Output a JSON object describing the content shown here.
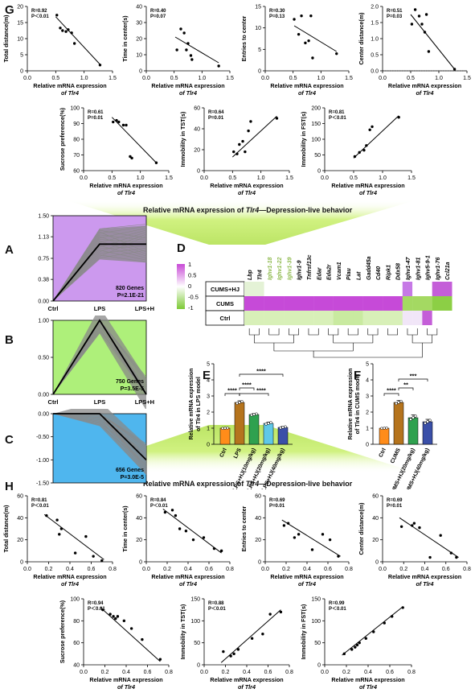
{
  "panels": {
    "g": "G",
    "a": "A",
    "b": "B",
    "c": "C",
    "d": "D",
    "e": "E",
    "f": "F",
    "h": "H"
  },
  "banner_top": {
    "pre": "Relative mRNA expression of ",
    "gene": "Tlr4",
    "post": "—Depression-live behavior"
  },
  "banner_bottom": {
    "pre": "Relative mRNA expression of ",
    "gene": "Tlr4",
    "post": "—Depression-live behavior"
  },
  "colors": {
    "purple": "#cc99ee",
    "green": "#aef07a",
    "blue": "#4fb6ee",
    "ctrl": "#ff8c1a",
    "lps": "#b5741d",
    "hj10": "#2fa14f",
    "hj20": "#5fc8e8",
    "hj40": "#3a4fa8"
  },
  "chart_data": [
    {
      "id": "G1",
      "type": "scatter",
      "ylabel": "Total distance(m)",
      "xlabel": "Relative mRNA expression",
      "xlabel2": "of Tlr4",
      "stat1": "R=0.92",
      "stat2": "P＜0.01",
      "xlim": [
        0,
        1.5
      ],
      "ylim": [
        0,
        20
      ],
      "xticks": [
        "0.0",
        "0.5",
        "1.0",
        "1.5"
      ],
      "yticks": [
        "0",
        "5",
        "10",
        "15",
        "20"
      ],
      "x": [
        0.52,
        0.58,
        0.62,
        0.68,
        0.72,
        0.78,
        0.83,
        1.28
      ],
      "y": [
        17.3,
        13.3,
        12.5,
        12.2,
        12.8,
        11.8,
        8.5,
        1.8
      ],
      "fit": [
        [
          0.5,
          16.8
        ],
        [
          1.28,
          2.0
        ]
      ],
      "dashed": false
    },
    {
      "id": "G2",
      "type": "scatter",
      "ylabel": "Time in center(s)",
      "xlabel": "Relative mRNA expression",
      "xlabel2": "of Tlr4",
      "stat1": "R=0.40",
      "stat2": "P=0.07",
      "xlim": [
        0,
        1.5
      ],
      "ylim": [
        0,
        40
      ],
      "xticks": [
        "0.0",
        "0.5",
        "1.0",
        "1.5"
      ],
      "yticks": [
        "0",
        "10",
        "20",
        "30",
        "40"
      ],
      "x": [
        0.55,
        0.62,
        0.68,
        0.72,
        0.75,
        0.8,
        0.82,
        1.3
      ],
      "y": [
        13,
        26,
        23.5,
        13,
        17,
        9.5,
        7,
        3
      ],
      "fit": [
        [
          0.52,
          21
        ],
        [
          1.3,
          5
        ]
      ],
      "dashed": false
    },
    {
      "id": "G3",
      "type": "scatter",
      "ylabel": "Entries to center",
      "xlabel": "Relative mRNA expression",
      "xlabel2": "of Tlr4",
      "stat1": "R=0.30",
      "stat2": "P=0.13",
      "xlim": [
        0,
        1.5
      ],
      "ylim": [
        0,
        15
      ],
      "xticks": [
        "0.0",
        "0.5",
        "1.0",
        "1.5"
      ],
      "yticks": [
        "0",
        "5",
        "10",
        "15"
      ],
      "x": [
        0.52,
        0.6,
        0.65,
        0.72,
        0.78,
        0.82,
        0.85,
        1.28
      ],
      "y": [
        12,
        8.5,
        12.8,
        6.5,
        7,
        12.8,
        3,
        4
      ],
      "fit": [
        [
          0.52,
          10.5
        ],
        [
          1.28,
          4.5
        ]
      ],
      "dashed": false
    },
    {
      "id": "G4",
      "type": "scatter",
      "ylabel": "Center distance(m)",
      "xlabel": "Relative mRNA expression",
      "xlabel2": "of Tlr4",
      "stat1": "R=0.51",
      "stat2": "P=0.03",
      "xlim": [
        0,
        1.5
      ],
      "ylim": [
        0,
        2.0
      ],
      "xticks": [
        "0.0",
        "0.5",
        "1.0",
        "1.5"
      ],
      "yticks": [
        "0.0",
        "0.5",
        "1.0",
        "1.5",
        "2.0"
      ],
      "x": [
        0.52,
        0.58,
        0.65,
        0.7,
        0.75,
        0.78,
        0.82,
        1.28
      ],
      "y": [
        1.45,
        1.9,
        1.7,
        1.45,
        1.2,
        1.75,
        0.6,
        0.05
      ],
      "fit": [
        [
          0.5,
          1.75
        ],
        [
          1.28,
          0.05
        ]
      ],
      "dashed": true
    },
    {
      "id": "G5",
      "type": "scatter",
      "ylabel": "Sucrose preference(%)",
      "xlabel": "Relative mRNA expression",
      "xlabel2": "of Tlr4",
      "stat1": "R=0.61",
      "stat2": "P=0.01",
      "xlim": [
        0,
        1.5
      ],
      "ylim": [
        60,
        100
      ],
      "xticks": [
        "0.0",
        "0.5",
        "1.0",
        "1.5"
      ],
      "yticks": [
        "60",
        "70",
        "80",
        "90",
        "100"
      ],
      "x": [
        0.52,
        0.58,
        0.62,
        0.7,
        0.75,
        0.82,
        0.85,
        1.28
      ],
      "y": [
        91,
        92,
        91,
        89,
        89,
        69,
        68,
        65
      ],
      "fit": [
        [
          0.5,
          94
        ],
        [
          1.28,
          65
        ]
      ],
      "dashed": false
    },
    {
      "id": "G6",
      "type": "scatter",
      "ylabel": "Immobility in TST(s)",
      "xlabel": "Relative mRNA expression",
      "xlabel2": "of Tlr4",
      "stat1": "R=0.64",
      "stat2": "P=0.01",
      "xlim": [
        0,
        1.5
      ],
      "ylim": [
        0,
        60
      ],
      "xticks": [
        "0.0",
        "0.5",
        "1.0",
        "1.5"
      ],
      "yticks": [
        "0",
        "20",
        "40",
        "60"
      ],
      "x": [
        0.52,
        0.58,
        0.62,
        0.68,
        0.72,
        0.78,
        0.82,
        1.28
      ],
      "y": [
        18,
        16,
        25,
        28,
        18,
        38,
        47,
        50
      ],
      "fit": [
        [
          0.5,
          13
        ],
        [
          1.28,
          52
        ]
      ],
      "dashed": false
    },
    {
      "id": "G7",
      "type": "scatter",
      "ylabel": "Immobility in FST(s)",
      "xlabel": "Relative mRNA expression",
      "xlabel2": "of Tlr4",
      "stat1": "R=0.81",
      "stat2": "P＜0.01",
      "xlim": [
        0,
        1.5
      ],
      "ylim": [
        0,
        200
      ],
      "xticks": [
        "0.0",
        "0.5",
        "1.0",
        "1.5"
      ],
      "yticks": [
        "0",
        "50",
        "100",
        "150",
        "200"
      ],
      "x": [
        0.52,
        0.6,
        0.68,
        0.72,
        0.78,
        0.82,
        1.28
      ],
      "y": [
        45,
        58,
        65,
        80,
        130,
        140,
        170
      ],
      "fit": [
        [
          0.5,
          40
        ],
        [
          1.28,
          175
        ]
      ],
      "dashed": false
    },
    {
      "id": "A",
      "type": "line",
      "panel_color": "#cc99ee",
      "categories": [
        "Ctrl",
        "LPS",
        "LPS+HJ"
      ],
      "ylim": [
        0,
        1.5
      ],
      "yticks": [
        "0.00",
        "0.38",
        "0.75",
        "1.13",
        "1.50"
      ],
      "mean": [
        0,
        1.0,
        1.0
      ],
      "count": "820 Genes",
      "p": "P=2.1E-21"
    },
    {
      "id": "B",
      "type": "line",
      "panel_color": "#aef07a",
      "categories": [
        "Ctrl",
        "LPS",
        "LPS+HJ"
      ],
      "ylim": [
        0,
        1.0
      ],
      "yticks": [
        "0.00",
        "0.50",
        "1.00"
      ],
      "mean": [
        0,
        1.0,
        0
      ],
      "count": "750 Genes",
      "p": "P=3.5E-5"
    },
    {
      "id": "C",
      "type": "line",
      "panel_color": "#4fb6ee",
      "categories": [
        "Ctrl",
        "LPS",
        "LPS+HJ"
      ],
      "ylim": [
        -1.5,
        0.0
      ],
      "yticks": [
        "0.00",
        "-0.50",
        "-1.00",
        "-1.50"
      ],
      "mean": [
        0,
        0,
        -1.0
      ],
      "count": "656 Genes",
      "p": "P=3.0E-5"
    },
    {
      "id": "D",
      "type": "heatmap",
      "rows": [
        "CUMS+HJ",
        "CUMS",
        "Ctrl"
      ],
      "scale": [
        "1",
        "0.5",
        "0",
        "-0.5",
        "-1"
      ],
      "columns": [
        "Lbp",
        "Tlr4",
        "Ighv1-18",
        "Ighv1-22",
        "Ighv1-39",
        "Ighv1-9",
        "Tnfrsf13c",
        "Edar",
        "Eda2r",
        "Vcam1",
        "Plau",
        "Lat",
        "Gadd45a",
        "Cd40",
        "Ripk1",
        "Ddx58",
        "Ighv1-47",
        "Ighv1-81",
        "Ighv5-9-1",
        "Ighv1-76",
        "Ccl21a"
      ]
    },
    {
      "id": "E",
      "type": "bar",
      "ylabel": "Relative mRNA expression",
      "ylabel2": "of Tlr4 in LPS model",
      "categories": [
        "Ctrl",
        "LPS",
        "LPS+HJ(10mg/kg)",
        "LPS+HJ(20mg/kg)",
        "LPS+HJ(40mg/kg)"
      ],
      "values": [
        1.0,
        2.6,
        1.85,
        1.3,
        1.05
      ],
      "errors": [
        0.02,
        0.1,
        0.06,
        0.08,
        0.06
      ],
      "ylim": [
        0,
        5
      ],
      "yticks": [
        "0",
        "1",
        "2",
        "3",
        "4",
        "5"
      ],
      "sig": [
        "****",
        "****",
        "****",
        "****"
      ]
    },
    {
      "id": "F",
      "type": "bar",
      "ylabel": "Relative mRNA expression",
      "ylabel2": "of Tlr4 in CUMS model",
      "categories": [
        "Ctrl",
        "CUMS",
        "CUMS+HJ(20mg/kg)",
        "CUMS+HJ(40mg/kg)"
      ],
      "values": [
        1.0,
        2.6,
        1.65,
        1.4
      ],
      "errors": [
        0.02,
        0.12,
        0.18,
        0.15
      ],
      "ylim": [
        0,
        5
      ],
      "yticks": [
        "0",
        "1",
        "2",
        "3",
        "4",
        "5"
      ],
      "sig": [
        "****",
        "**",
        "***"
      ]
    },
    {
      "id": "H1",
      "type": "scatter",
      "ylabel": "Total distance(m)",
      "xlabel": "Relative mRNA expression",
      "xlabel2": "of Tlr4",
      "stat1": "R=0.81",
      "stat2": "P＜0.01",
      "xlim": [
        0,
        0.8
      ],
      "ylim": [
        0,
        60
      ],
      "xticks": [
        "0.0",
        "0.2",
        "0.4",
        "0.6",
        "0.8"
      ],
      "yticks": [
        "0",
        "20",
        "40",
        "60"
      ],
      "x": [
        0.18,
        0.28,
        0.3,
        0.32,
        0.45,
        0.55,
        0.62,
        0.7
      ],
      "y": [
        42,
        38,
        25,
        30,
        8,
        23,
        5,
        1
      ],
      "fit": [
        [
          0.16,
          43
        ],
        [
          0.72,
          2
        ]
      ],
      "dashed": false
    },
    {
      "id": "H2",
      "type": "scatter",
      "ylabel": "Time in center(s)",
      "xlabel": "Relative mRNA expression",
      "xlabel2": "of Tlr4",
      "stat1": "R=0.84",
      "stat2": "P＜0.01",
      "xlim": [
        0,
        0.8
      ],
      "ylim": [
        0,
        60
      ],
      "xticks": [
        "0.0",
        "0.2",
        "0.4",
        "0.6",
        "0.8"
      ],
      "yticks": [
        "0",
        "20",
        "40",
        "60"
      ],
      "x": [
        0.18,
        0.25,
        0.28,
        0.32,
        0.38,
        0.45,
        0.55,
        0.65,
        0.72
      ],
      "y": [
        45,
        47,
        42,
        30,
        28,
        20,
        22,
        12,
        10
      ],
      "fit": [
        [
          0.16,
          48
        ],
        [
          0.72,
          8
        ]
      ],
      "dashed": false
    },
    {
      "id": "H3",
      "type": "scatter",
      "ylabel": "Entries to center",
      "xlabel": "Relative mRNA expression",
      "xlabel2": "of Tlr4",
      "stat1": "R=0.69",
      "stat2": "P=0.01",
      "xlim": [
        0,
        0.8
      ],
      "ylim": [
        0,
        60
      ],
      "xticks": [
        "0.0",
        "0.2",
        "0.4",
        "0.6",
        "0.8"
      ],
      "yticks": [
        "0",
        "20",
        "40",
        "60"
      ],
      "x": [
        0.18,
        0.22,
        0.28,
        0.32,
        0.45,
        0.55,
        0.62,
        0.7
      ],
      "y": [
        33,
        35,
        22,
        25,
        11,
        25,
        20,
        5
      ],
      "fit": [
        [
          0.16,
          38
        ],
        [
          0.72,
          5
        ]
      ],
      "dashed": false
    },
    {
      "id": "H4",
      "type": "scatter",
      "ylabel": "Center distance(m)",
      "xlabel": "Relative mRNA expression",
      "xlabel2": "of Tlr4",
      "stat1": "R=0.69",
      "stat2": "P=0.01",
      "xlim": [
        0,
        0.8
      ],
      "ylim": [
        0,
        60
      ],
      "xticks": [
        "0.0",
        "0.2",
        "0.4",
        "0.6",
        "0.8"
      ],
      "yticks": [
        "0",
        "20",
        "40",
        "60"
      ],
      "x": [
        0.18,
        0.28,
        0.3,
        0.35,
        0.45,
        0.55,
        0.65,
        0.7
      ],
      "y": [
        32,
        33,
        35,
        31,
        4,
        24,
        8,
        4
      ],
      "fit": [
        [
          0.16,
          40
        ],
        [
          0.72,
          4
        ]
      ],
      "dashed": false
    },
    {
      "id": "H5",
      "type": "scatter",
      "ylabel": "Sucrose preference(%)",
      "xlabel": "Relative mRNA expression",
      "xlabel2": "of Tlr4",
      "stat1": "R=0.94",
      "stat2": "P＜0.01",
      "xlim": [
        0,
        0.8
      ],
      "ylim": [
        40,
        100
      ],
      "xticks": [
        "0.0",
        "0.2",
        "0.4",
        "0.6",
        "0.8"
      ],
      "yticks": [
        "40",
        "60",
        "80",
        "100"
      ],
      "x": [
        0.18,
        0.25,
        0.28,
        0.3,
        0.32,
        0.38,
        0.45,
        0.55,
        0.72
      ],
      "y": [
        90,
        86,
        84,
        82,
        84,
        80,
        73,
        63,
        45
      ],
      "fit": [
        [
          0.16,
          92
        ],
        [
          0.72,
          43
        ]
      ],
      "dashed": false
    },
    {
      "id": "H6",
      "type": "scatter",
      "ylabel": "Immobility in TST(s)",
      "xlabel": "Relative mRNA expression",
      "xlabel2": "of Tlr4",
      "stat1": "R=0.88",
      "stat2": "P＜0.01",
      "xlim": [
        0,
        0.8
      ],
      "ylim": [
        0,
        150
      ],
      "xticks": [
        "0.0",
        "0.2",
        "0.4",
        "0.6",
        "0.8"
      ],
      "yticks": [
        "0",
        "50",
        "100",
        "150"
      ],
      "x": [
        0.18,
        0.25,
        0.28,
        0.32,
        0.45,
        0.55,
        0.62,
        0.72
      ],
      "y": [
        30,
        20,
        25,
        35,
        60,
        70,
        115,
        120
      ],
      "fit": [
        [
          0.16,
          5
        ],
        [
          0.72,
          125
        ]
      ],
      "dashed": false
    },
    {
      "id": "H7",
      "type": "scatter",
      "ylabel": "Immobility in FST(s)",
      "xlabel": "Relative mRNA expression",
      "xlabel2": "of Tlr4",
      "stat1": "R=0.99",
      "stat2": "P＜0.01",
      "xlim": [
        0,
        0.8
      ],
      "ylim": [
        0,
        150
      ],
      "xticks": [
        "0.0",
        "0.2",
        "0.4",
        "0.6",
        "0.8"
      ],
      "yticks": [
        "0",
        "50",
        "100",
        "150"
      ],
      "x": [
        0.18,
        0.25,
        0.28,
        0.3,
        0.32,
        0.38,
        0.45,
        0.55,
        0.62,
        0.72
      ],
      "y": [
        25,
        35,
        40,
        45,
        50,
        60,
        75,
        95,
        110,
        130
      ],
      "fit": [
        [
          0.16,
          22
        ],
        [
          0.72,
          132
        ]
      ],
      "dashed": false
    }
  ]
}
